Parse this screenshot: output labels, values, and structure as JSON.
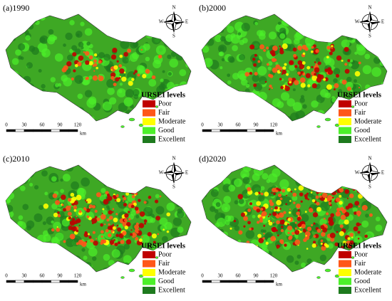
{
  "panels": [
    {
      "label": "(a)1990"
    },
    {
      "label": "(b)2000"
    },
    {
      "label": "(c)2010"
    },
    {
      "label": "(d)2020"
    }
  ],
  "compass": {
    "n": "N",
    "s": "S",
    "w": "W",
    "e": "E"
  },
  "legend": {
    "title": "URSEI levels",
    "items": [
      {
        "name": "Poor",
        "color": "#c00000"
      },
      {
        "name": "Fair",
        "color": "#ff5719"
      },
      {
        "name": "Moderate",
        "color": "#ffff00"
      },
      {
        "name": "Good",
        "color": "#4cf02a"
      },
      {
        "name": "Excellent",
        "color": "#1e7a1e"
      }
    ]
  },
  "scale_bar": {
    "ticks": [
      0,
      30,
      60,
      90,
      120
    ],
    "unit": "km"
  }
}
